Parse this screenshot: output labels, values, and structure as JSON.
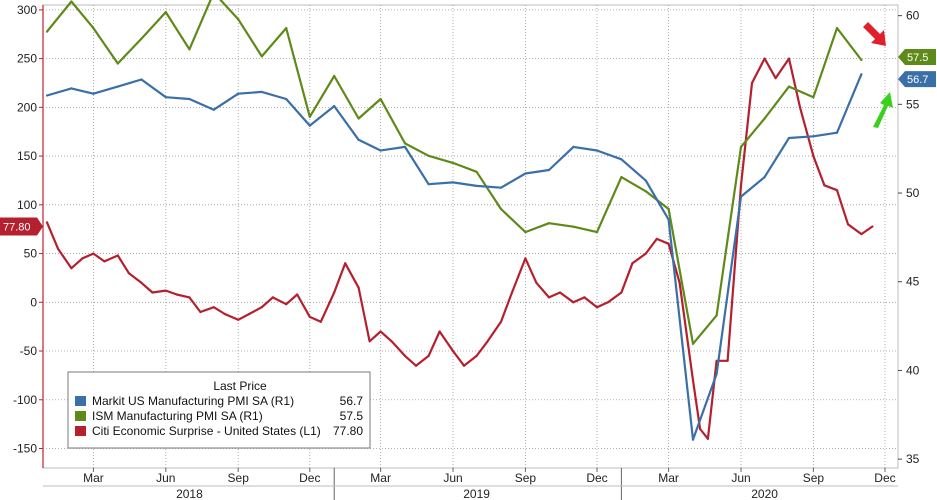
{
  "chart_data": {
    "type": "line",
    "left_axis": {
      "ticks": [
        300,
        250,
        200,
        150,
        100,
        50,
        0,
        -50,
        -100,
        -150
      ],
      "range": [
        -170,
        305
      ]
    },
    "right_axis": {
      "ticks": [
        60,
        55,
        50,
        45,
        40,
        35
      ],
      "range": [
        34.5,
        60.6
      ]
    },
    "x_month_labels": [
      "Mar",
      "Jun",
      "Sep",
      "Dec",
      "Mar",
      "Jun",
      "Sep",
      "Dec",
      "Mar",
      "Jun",
      "Sep",
      "Dec"
    ],
    "x_year_labels": [
      "2018",
      "2019",
      "2020"
    ],
    "grid": "dotted",
    "legend": {
      "title": "Last Price",
      "placement": "bottom-left",
      "entries": [
        {
          "label": "Markit US Manufacturing PMI SA  (R1)",
          "value": "56.7",
          "color": "#3b6fa8"
        },
        {
          "label": "ISM Manufacturing PMI SA  (R1)",
          "value": "57.5",
          "color": "#5e8a1a"
        },
        {
          "label": "Citi Economic Surprise - United States  (L1)",
          "value": "77.80",
          "color": "#b5202e"
        }
      ]
    },
    "last_value_tags": [
      {
        "text": "57.5",
        "axis": "right",
        "value": 57.5,
        "color": "#5e8a1a"
      },
      {
        "text": "56.7",
        "axis": "right",
        "value": 56.7,
        "color": "#3b6fa8"
      },
      {
        "text": "77.80",
        "axis": "left",
        "value": 77.8,
        "color": "#b5202e"
      }
    ],
    "series": [
      {
        "name": "Markit US Manufacturing PMI SA",
        "axis": "right",
        "color": "#3b6fa8",
        "x": [
          "2018-01",
          "2018-02",
          "2018-03",
          "2018-04",
          "2018-05",
          "2018-06",
          "2018-07",
          "2018-08",
          "2018-09",
          "2018-10",
          "2018-11",
          "2018-12",
          "2019-01",
          "2019-02",
          "2019-03",
          "2019-04",
          "2019-05",
          "2019-06",
          "2019-07",
          "2019-08",
          "2019-09",
          "2019-10",
          "2019-11",
          "2019-12",
          "2020-01",
          "2020-02",
          "2020-03",
          "2020-04",
          "2020-05",
          "2020-06",
          "2020-07",
          "2020-08",
          "2020-09",
          "2020-10",
          "2020-11"
        ],
        "values": [
          55.5,
          55.9,
          55.6,
          56.0,
          56.4,
          55.4,
          55.3,
          54.7,
          55.6,
          55.7,
          55.3,
          53.8,
          54.9,
          53.0,
          52.4,
          52.6,
          50.5,
          50.6,
          50.4,
          50.3,
          51.1,
          51.3,
          52.6,
          52.4,
          51.9,
          50.7,
          48.5,
          36.1,
          39.8,
          49.8,
          50.9,
          53.1,
          53.2,
          53.4,
          56.7
        ]
      },
      {
        "name": "ISM Manufacturing PMI SA",
        "axis": "right",
        "color": "#5e8a1a",
        "x": [
          "2018-01",
          "2018-02",
          "2018-03",
          "2018-04",
          "2018-05",
          "2018-06",
          "2018-07",
          "2018-08",
          "2018-09",
          "2018-10",
          "2018-11",
          "2018-12",
          "2019-01",
          "2019-02",
          "2019-03",
          "2019-04",
          "2019-05",
          "2019-06",
          "2019-07",
          "2019-08",
          "2019-09",
          "2019-10",
          "2019-11",
          "2019-12",
          "2020-01",
          "2020-02",
          "2020-03",
          "2020-04",
          "2020-05",
          "2020-06",
          "2020-07",
          "2020-08",
          "2020-09",
          "2020-10",
          "2020-11"
        ],
        "values": [
          59.1,
          60.8,
          59.3,
          57.3,
          58.7,
          60.2,
          58.1,
          61.3,
          59.8,
          57.7,
          59.3,
          54.3,
          56.6,
          54.2,
          55.3,
          52.8,
          52.1,
          51.7,
          51.2,
          49.1,
          47.8,
          48.3,
          48.1,
          47.8,
          50.9,
          50.1,
          49.1,
          41.5,
          43.1,
          52.6,
          54.2,
          56.0,
          55.4,
          59.3,
          57.5
        ]
      },
      {
        "name": "Citi Economic Surprise - United States",
        "axis": "left",
        "color": "#b5202e",
        "x": [
          "2018-01-01",
          "2018-01-15",
          "2018-02-01",
          "2018-02-15",
          "2018-03-01",
          "2018-03-15",
          "2018-04-01",
          "2018-04-15",
          "2018-05-01",
          "2018-05-15",
          "2018-06-01",
          "2018-06-15",
          "2018-07-01",
          "2018-07-15",
          "2018-08-01",
          "2018-08-15",
          "2018-09-01",
          "2018-09-15",
          "2018-10-01",
          "2018-10-15",
          "2018-11-01",
          "2018-11-15",
          "2018-12-01",
          "2018-12-15",
          "2019-01-01",
          "2019-01-15",
          "2019-02-01",
          "2019-02-15",
          "2019-03-01",
          "2019-03-15",
          "2019-04-01",
          "2019-04-15",
          "2019-05-01",
          "2019-05-15",
          "2019-06-01",
          "2019-06-15",
          "2019-07-01",
          "2019-07-15",
          "2019-08-01",
          "2019-08-15",
          "2019-09-01",
          "2019-09-15",
          "2019-10-01",
          "2019-10-15",
          "2019-11-01",
          "2019-11-15",
          "2019-12-01",
          "2019-12-15",
          "2020-01-01",
          "2020-01-15",
          "2020-02-01",
          "2020-02-15",
          "2020-03-01",
          "2020-03-15",
          "2020-04-01",
          "2020-04-10",
          "2020-04-20",
          "2020-05-01",
          "2020-05-15",
          "2020-06-01",
          "2020-06-15",
          "2020-07-01",
          "2020-07-15",
          "2020-08-01",
          "2020-08-15",
          "2020-09-01",
          "2020-09-15",
          "2020-10-01",
          "2020-10-15",
          "2020-11-01",
          "2020-11-15"
        ],
        "values": [
          82,
          55,
          35,
          45,
          50,
          42,
          48,
          30,
          20,
          10,
          12,
          8,
          5,
          -10,
          -5,
          -12,
          -18,
          -12,
          -5,
          5,
          -2,
          8,
          -15,
          -20,
          10,
          40,
          15,
          -40,
          -30,
          -40,
          -55,
          -65,
          -55,
          -30,
          -50,
          -65,
          -55,
          -40,
          -20,
          10,
          45,
          20,
          5,
          10,
          0,
          5,
          -5,
          0,
          10,
          40,
          50,
          65,
          60,
          20,
          -80,
          -130,
          -140,
          -60,
          -60,
          120,
          225,
          250,
          230,
          250,
          200,
          150,
          120,
          115,
          80,
          70,
          77.8
        ]
      }
    ]
  }
}
